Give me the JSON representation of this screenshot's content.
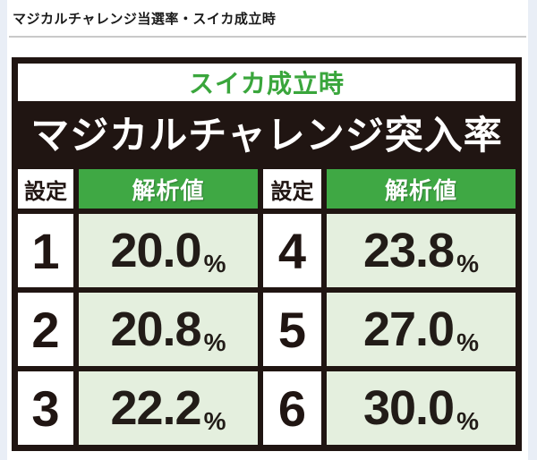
{
  "page": {
    "title": "マジカルチャレンジ当選率・スイカ成立時"
  },
  "panel": {
    "subtitle": "スイカ成立時",
    "title": "マジカルチャレンジ突入率"
  },
  "table": {
    "headers": [
      "設定",
      "解析値",
      "設定",
      "解析値"
    ],
    "unit": "%",
    "rows": [
      {
        "left_setting": "1",
        "left_value": "20.0",
        "right_setting": "4",
        "right_value": "23.8"
      },
      {
        "left_setting": "2",
        "left_value": "20.8",
        "right_setting": "5",
        "right_value": "27.0"
      },
      {
        "left_setting": "3",
        "left_value": "22.2",
        "right_setting": "6",
        "right_value": "30.0"
      }
    ]
  },
  "colors": {
    "accent_green": "#3fa844",
    "subtitle_green": "#3aa63c",
    "pale_green_cell": "#e4efde",
    "panel_black": "#201512",
    "page_background": "#e9eef6"
  },
  "chart_data": {
    "type": "table",
    "title": "マジカルチャレンジ突入率",
    "subtitle": "スイカ成立時",
    "page_heading": "マジカルチャレンジ当選率・スイカ成立時",
    "columns": [
      "設定",
      "解析値"
    ],
    "categories": [
      "1",
      "2",
      "3",
      "4",
      "5",
      "6"
    ],
    "values": [
      20.0,
      20.8,
      22.2,
      23.8,
      27.0,
      30.0
    ],
    "unit": "%"
  }
}
